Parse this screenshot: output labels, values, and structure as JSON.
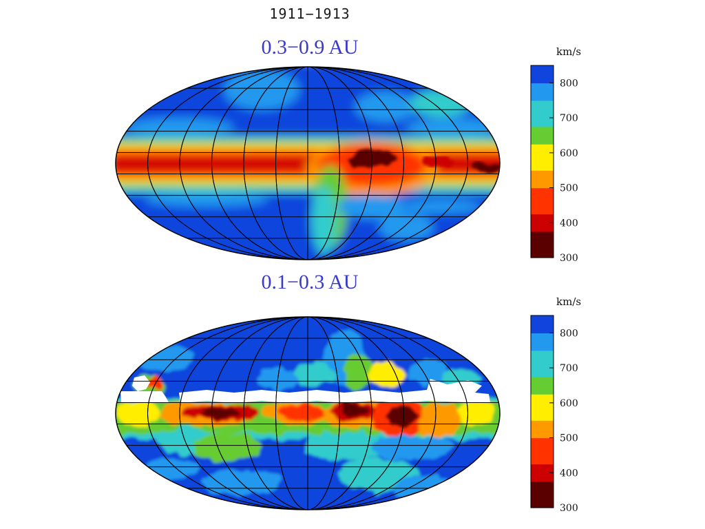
{
  "title": "1911−1913",
  "panels": [
    {
      "label": "0.3−0.9 AU"
    },
    {
      "label": "0.1−0.3 AU"
    }
  ],
  "chart_data": [
    {
      "type": "heatmap",
      "title": "0.3−0.9 AU",
      "projection": "hammer-aitoff",
      "grid": true,
      "colorbar": {
        "label": "km/s",
        "range": [
          300,
          850
        ],
        "ticks": [
          800,
          700,
          600,
          500,
          400,
          300
        ]
      },
      "colors": [
        "#5a0000",
        "#cc0000",
        "#ff3300",
        "#ff9900",
        "#ffee00",
        "#66cc33",
        "#33cccc",
        "#2299ee",
        "#1144dd"
      ]
    },
    {
      "type": "heatmap",
      "title": "0.1−0.3 AU",
      "projection": "hammer-aitoff",
      "grid": true,
      "colorbar": {
        "label": "km/s",
        "range": [
          300,
          850
        ],
        "ticks": [
          800,
          700,
          600,
          500,
          400,
          300
        ]
      },
      "colors": [
        "#5a0000",
        "#cc0000",
        "#ff3300",
        "#ff9900",
        "#ffee00",
        "#66cc33",
        "#33cccc",
        "#2299ee",
        "#1144dd"
      ]
    }
  ]
}
